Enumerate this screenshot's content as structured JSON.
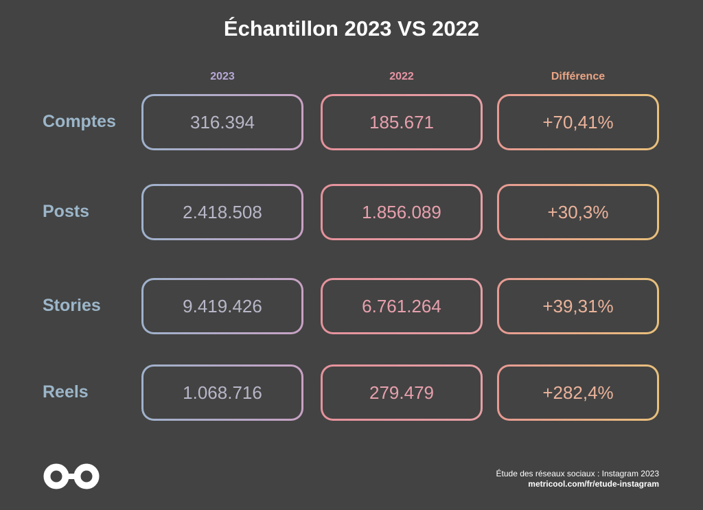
{
  "title": "Échantillon 2023 VS 2022",
  "chart_data": {
    "type": "table",
    "columns": [
      "2023",
      "2022",
      "Différence"
    ],
    "rows": [
      {
        "label": "Comptes",
        "v2023": "316.394",
        "v2022": "185.671",
        "diff": "+70,41%"
      },
      {
        "label": "Posts",
        "v2023": "2.418.508",
        "v2022": "1.856.089",
        "diff": "+30,3%"
      },
      {
        "label": "Stories",
        "v2023": "9.419.426",
        "v2022": "6.761.264",
        "diff": "+39,31%"
      },
      {
        "label": "Reels",
        "v2023": "1.068.716",
        "v2022": "279.479",
        "diff": "+282,4%"
      }
    ]
  },
  "colors": {
    "background": "#434343",
    "row_label": "#9cb6c9",
    "col_2023": "#b7a9d6",
    "col_2022": "#e895a4",
    "col_diff": "#eba585"
  },
  "logo_icon": "metricool-infinity-logo-icon",
  "footer": {
    "line1": "Étude des réseaux sociaux : Instagram 2023",
    "line2": "metricool.com/fr/etude-instagram"
  }
}
